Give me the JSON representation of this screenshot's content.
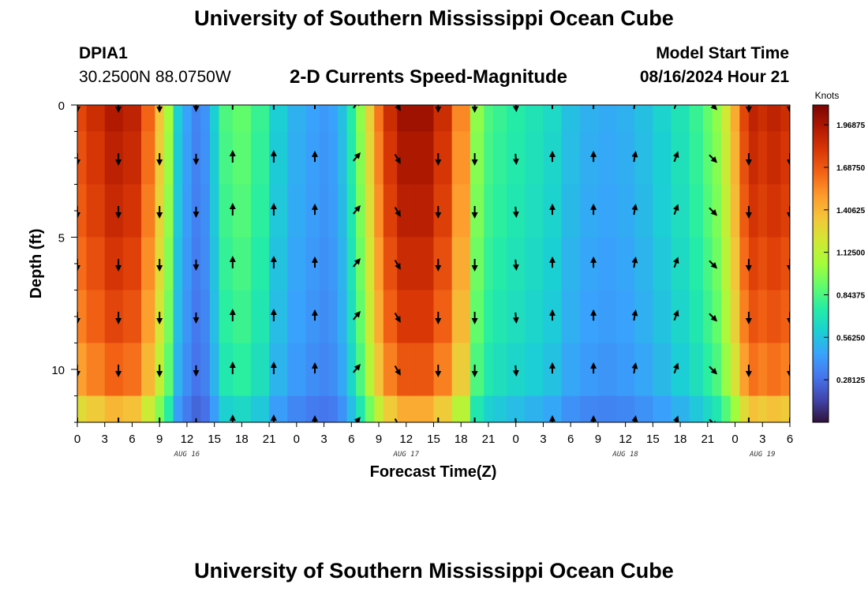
{
  "header": {
    "title": "University of Southern Mississippi Ocean Cube",
    "station": "DPIA1",
    "coords": "30.2500N  88.0750W",
    "subtitle": "2-D Currents Speed-Magnitude",
    "model_start_label": "Model Start Time",
    "model_start_value": "08/16/2024 Hour 21"
  },
  "footer": {
    "title": "University of Southern Mississippi Ocean Cube"
  },
  "chart_data": {
    "type": "heatmap",
    "title": "2-D Currents Speed-Magnitude",
    "xlabel": "Forecast Time(Z)",
    "ylabel": "Depth (ft)",
    "colorbar_label": "Knots",
    "colorbar_ticks": [
      "0.28125",
      "0.56250",
      "0.84375",
      "1.12500",
      "1.40625",
      "1.68750",
      "1.96875"
    ],
    "colorbar_values": [
      0.28125,
      0.5625,
      0.84375,
      1.125,
      1.40625,
      1.6875,
      1.96875
    ],
    "colorbar_range": [
      0,
      2.1
    ],
    "x_range_hours": [
      0,
      78
    ],
    "x_tick_labels": [
      "0",
      "3",
      "6",
      "9",
      "12",
      "15",
      "18",
      "21",
      "0",
      "3",
      "6",
      "9",
      "12",
      "15",
      "18",
      "21",
      "0",
      "3",
      "6",
      "9",
      "12",
      "15",
      "18",
      "21",
      "0",
      "3",
      "6"
    ],
    "date_labels": [
      {
        "text": "AUG 16",
        "hour": 12
      },
      {
        "text": "AUG 17",
        "hour": 36
      },
      {
        "text": "AUG 18",
        "hour": 60
      },
      {
        "text": "AUG 19",
        "hour": 75
      }
    ],
    "ylim": [
      0,
      12
    ],
    "y_ticks": [
      0,
      5,
      10
    ],
    "depth_rows": [
      0,
      2,
      4,
      6,
      8,
      10,
      12
    ],
    "time_hours": [
      0,
      2,
      4,
      6,
      8,
      9,
      10,
      11,
      12,
      13,
      14,
      15,
      16,
      18,
      20,
      22,
      24,
      26,
      27,
      28,
      29,
      30,
      31,
      32,
      33,
      34,
      36,
      38,
      40,
      42,
      44,
      45,
      46,
      48,
      50,
      52,
      54,
      56,
      58,
      60,
      62,
      64,
      66,
      68,
      69,
      70,
      71,
      72,
      73,
      74,
      75,
      76,
      78
    ],
    "surface_speed_knots": [
      1.75,
      1.85,
      1.95,
      1.9,
      1.65,
      1.35,
      1.05,
      0.6,
      0.45,
      0.35,
      0.4,
      0.6,
      0.85,
      0.9,
      0.8,
      0.6,
      0.5,
      0.45,
      0.42,
      0.45,
      0.55,
      0.75,
      1.0,
      1.3,
      1.6,
      1.85,
      2.0,
      2.0,
      1.85,
      1.55,
      1.0,
      0.85,
      0.8,
      0.75,
      0.7,
      0.65,
      0.55,
      0.5,
      0.48,
      0.5,
      0.55,
      0.62,
      0.7,
      0.8,
      0.9,
      1.0,
      1.2,
      1.45,
      1.75,
      1.9,
      1.85,
      1.9,
      1.85
    ],
    "depth_factor": [
      1.0,
      0.98,
      0.96,
      0.93,
      0.9,
      0.85,
      0.72
    ],
    "vector_hours": [
      0,
      4.5,
      9,
      13,
      17,
      21.5,
      26,
      30.5,
      35,
      39.5,
      43.5,
      48,
      52,
      56.5,
      61,
      65.5,
      69.5,
      73.5,
      78
    ],
    "vector_direction_deg": [
      180,
      180,
      180,
      180,
      0,
      0,
      0,
      40,
      150,
      180,
      180,
      175,
      0,
      0,
      10,
      20,
      135,
      180,
      180
    ],
    "vector_scale": [
      0.7,
      0.7,
      0.7,
      0.6,
      0.7,
      0.7,
      0.6,
      0.6,
      0.6,
      0.7,
      0.7,
      0.6,
      0.6,
      0.6,
      0.6,
      0.6,
      0.6,
      0.7,
      0.7
    ]
  },
  "colors": {
    "colormap": [
      "#30123b",
      "#4145ab",
      "#4675ed",
      "#39a2fc",
      "#1bcfd4",
      "#24eca6",
      "#61fc6c",
      "#a4fc3b",
      "#d1e834",
      "#f3c63a",
      "#fe9b2d",
      "#f36315",
      "#d93806",
      "#b11901",
      "#7a0402"
    ]
  }
}
